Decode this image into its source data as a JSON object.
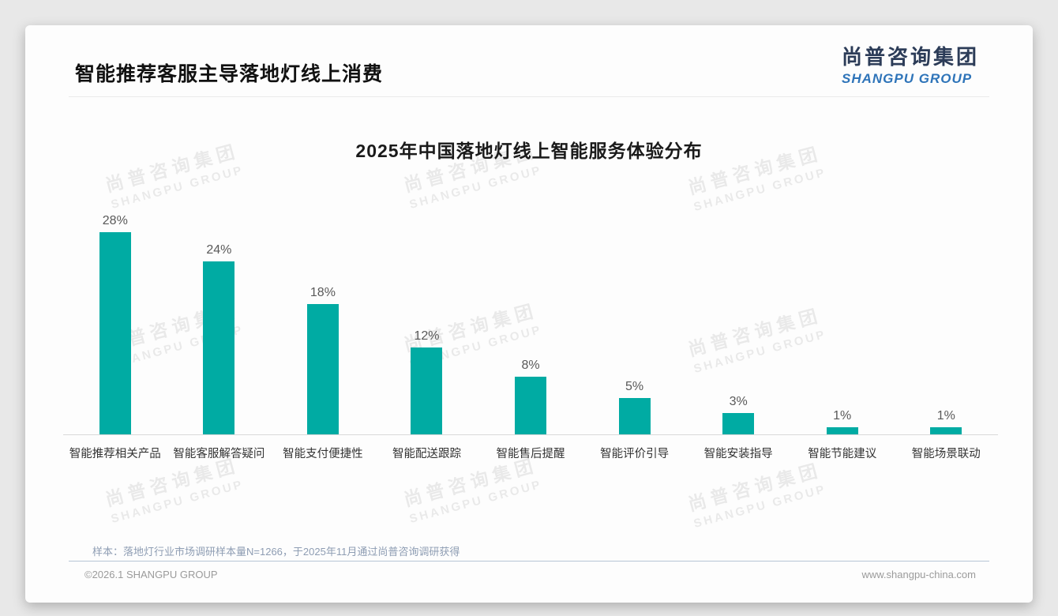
{
  "page": {
    "header": {
      "title": "智能推荐客服主导落地灯线上消费"
    },
    "logo": {
      "cn": "尚普咨询集团",
      "en": "SHANGPU GROUP",
      "cn_color": "#2c3c58",
      "en_color": "#2e74b9"
    },
    "watermark": {
      "cn": "尚普咨询集团",
      "en": "SHANGPU GROUP"
    },
    "footer": {
      "sample_note": "样本：落地灯行业市场调研样本量N=1266，于2025年11月通过尚普咨询调研获得",
      "copyright": "©2026.1 SHANGPU GROUP",
      "website": "www.shangpu-china.com"
    }
  },
  "chart_data": {
    "type": "bar",
    "title": "2025年中国落地灯线上智能服务体验分布",
    "categories": [
      "智能推荐相关产品",
      "智能客服解答疑问",
      "智能支付便捷性",
      "智能配送跟踪",
      "智能售后提醒",
      "智能评价引导",
      "智能安装指导",
      "智能节能建议",
      "智能场景联动"
    ],
    "values": [
      28,
      24,
      18,
      12,
      8,
      5,
      3,
      1,
      1
    ],
    "value_label_suffix": "%",
    "bar_color": "#00aba3",
    "ylim": [
      0,
      30
    ],
    "xlabel": "",
    "ylabel": "",
    "grid": false,
    "legend": "none"
  }
}
